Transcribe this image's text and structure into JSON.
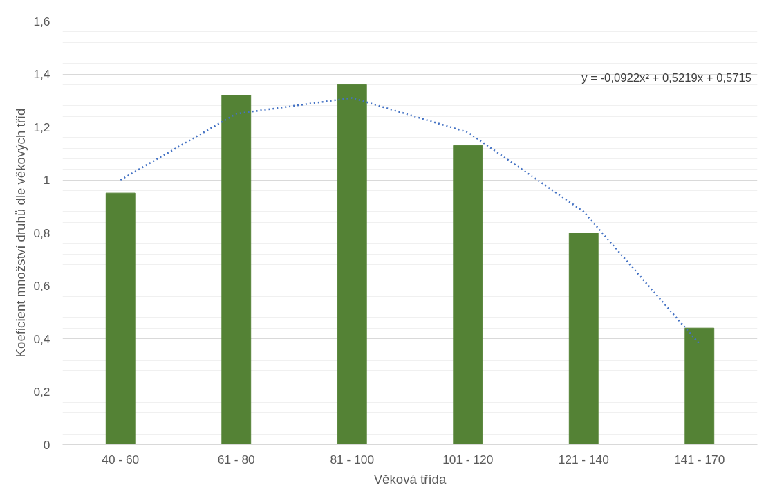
{
  "chart_data": {
    "type": "bar",
    "xlabel": "Věková třída",
    "ylabel": "Koeficient množství druhů dle věkových tříd",
    "categories": [
      "40 - 60",
      "61 - 80",
      "81 - 100",
      "101 - 120",
      "121 - 140",
      "141 - 170"
    ],
    "series": [
      {
        "color": "#548235",
        "values": [
          0.95,
          1.32,
          1.36,
          1.13,
          0.8,
          0.44
        ]
      },
      {
        "type": "line",
        "color": "#4472c4",
        "line_style": "dotted",
        "x": [
          "40 - 60",
          "61 - 80",
          "81 - 100",
          "101 - 120",
          "121 - 140",
          "141 - 170"
        ],
        "values": [
          1.0,
          1.25,
          1.31,
          1.18,
          0.88,
          0.38
        ]
      }
    ],
    "annotations": [
      "y = -0,0922x² + 0,5219x + 0,5715"
    ],
    "ylim": [
      0,
      1.6
    ],
    "yticks": [
      0,
      {
        "value": 0.2,
        "label": "0,2"
      },
      {
        "value": 0.4,
        "label": "0,4"
      },
      {
        "value": 0.6,
        "label": "0,6"
      },
      {
        "value": 0.8,
        "label": "0,8"
      },
      1,
      {
        "value": 1.2,
        "label": "1,2"
      },
      {
        "value": 1.4,
        "label": "1,4"
      },
      {
        "value": 1.6,
        "label": "1,6"
      }
    ],
    "grid": "y"
  }
}
